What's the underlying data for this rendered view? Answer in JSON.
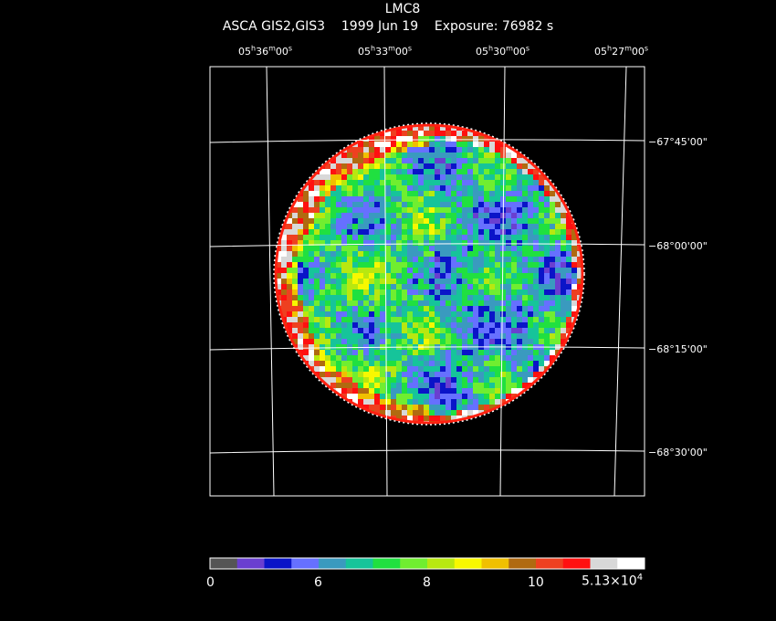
{
  "header": {
    "object": "LMC8",
    "subtitle": "ASCA GIS2,GIS3    1999 Jun 19    Exposure: 76982 s"
  },
  "axes": {
    "ra_labels": [
      "05h36m00s",
      "05h33m00s",
      "05h30m00s",
      "05h27m00s"
    ],
    "dec_labels": [
      "−67°45'00\"",
      "−68°00'00\"",
      "−68°15'00\"",
      "−68°30'00\""
    ]
  },
  "colorbar": {
    "tick_labels": [
      "0",
      "6",
      "8",
      "10",
      "5.13×10"
    ],
    "max_exponent": "4",
    "colors": [
      "#555555",
      "#6a3fd0",
      "#0a14c8",
      "#6670ff",
      "#3a9abf",
      "#16c49a",
      "#20e040",
      "#70ee30",
      "#b8e810",
      "#f8f800",
      "#f0c000",
      "#b06a10",
      "#ee4020",
      "#ff1010",
      "#d8d8d8",
      "#ffffff"
    ]
  }
}
